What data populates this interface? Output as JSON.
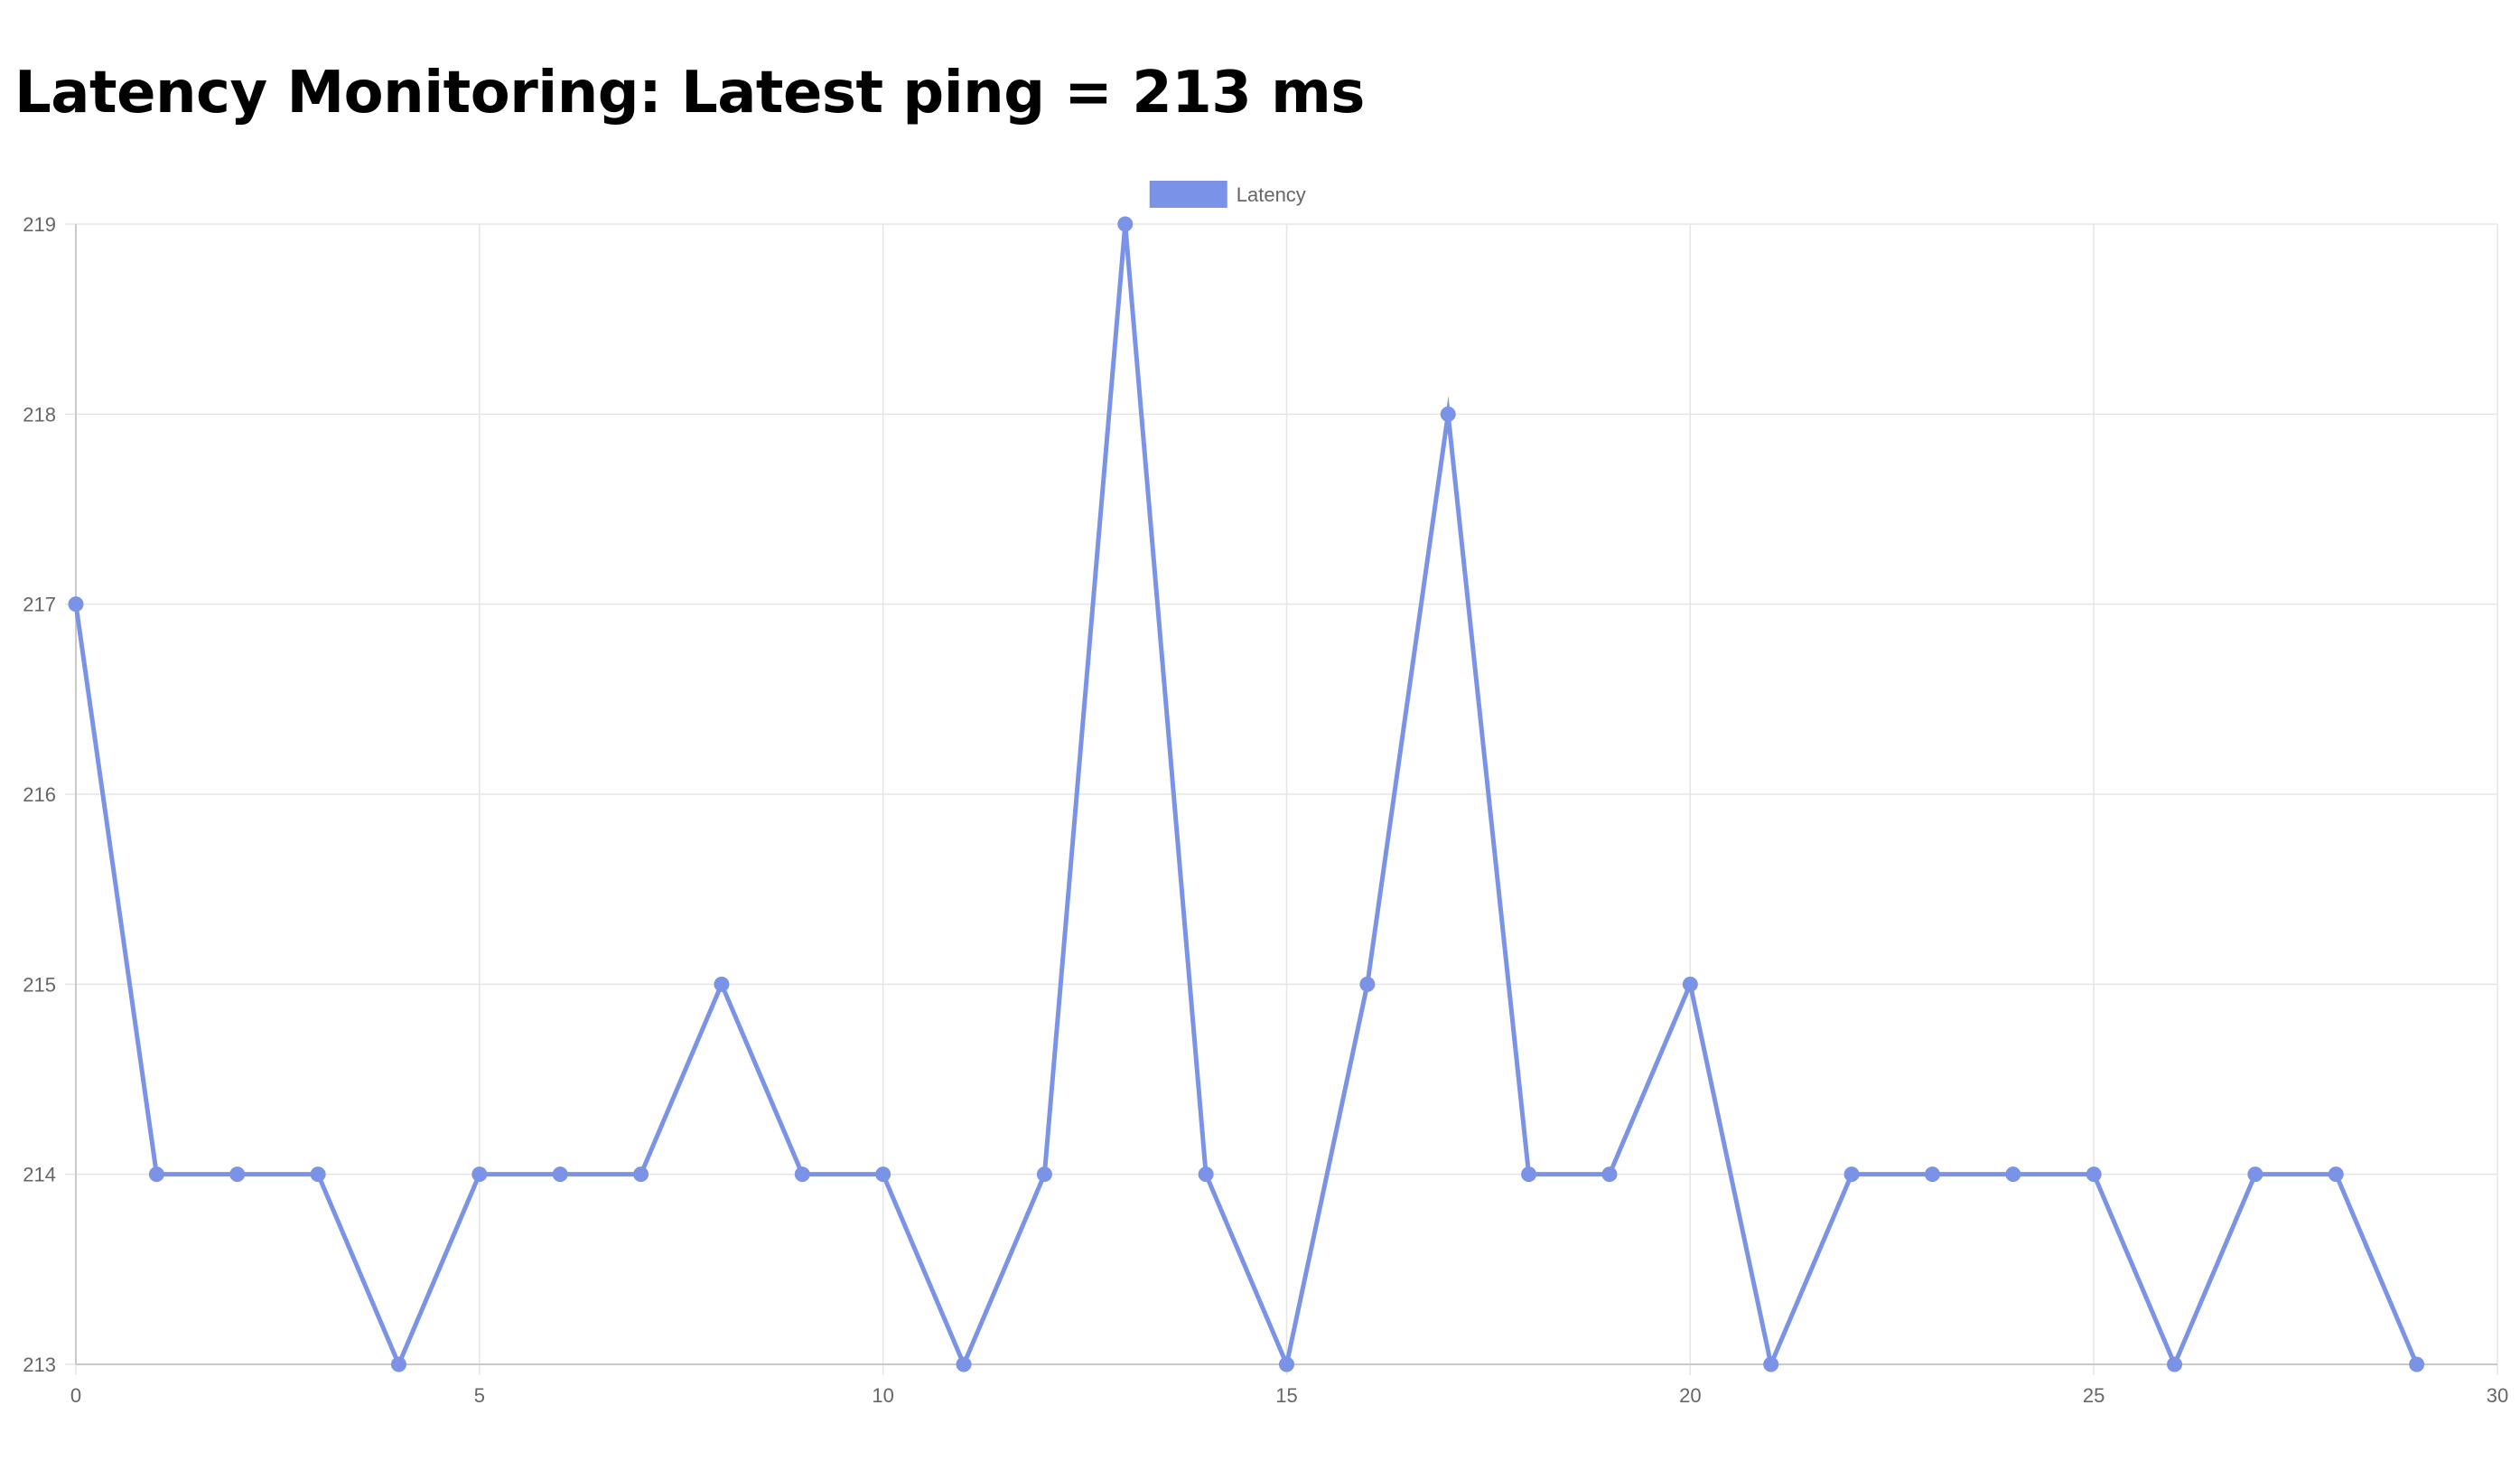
{
  "page": {
    "title": "Latency Monitoring: Latest ping = 213 ms"
  },
  "chart_data": {
    "type": "line",
    "title": "",
    "xlabel": "",
    "ylabel": "",
    "xlim": [
      0,
      30
    ],
    "ylim": [
      213,
      219
    ],
    "x_ticks": [
      0,
      5,
      10,
      15,
      20,
      25,
      30
    ],
    "y_ticks": [
      213,
      214,
      215,
      216,
      217,
      218,
      219
    ],
    "grid": true,
    "legend_position": "top-center",
    "series": [
      {
        "name": "Latency",
        "color": "#7b93e6",
        "x": [
          0,
          1,
          2,
          3,
          4,
          5,
          6,
          7,
          8,
          9,
          10,
          11,
          12,
          13,
          14,
          15,
          16,
          17,
          18,
          19,
          20,
          21,
          22,
          23,
          24,
          25,
          26,
          27,
          28,
          29
        ],
        "y": [
          217,
          214,
          214,
          214,
          213,
          214,
          214,
          214,
          215,
          214,
          214,
          213,
          214,
          219,
          214,
          213,
          215,
          218,
          214,
          214,
          215,
          213,
          214,
          214,
          214,
          214,
          213,
          214,
          214,
          213
        ]
      }
    ]
  }
}
